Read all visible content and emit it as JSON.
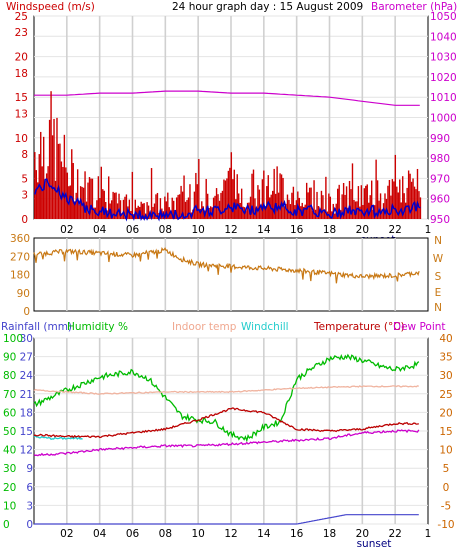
{
  "header": {
    "left": "Windspeed (m/s)",
    "title": "24 hour graph day : 15 August 2009",
    "right": "Barometer (hPa)"
  },
  "panel3_header": {
    "rainfall": "Rainfall (mm)",
    "humidity": "Humidity %",
    "indoor": "Indoor temp",
    "windchill": "Windchill",
    "temperature": "Temperature (°C)",
    "dewpoint": "Dew Point"
  },
  "x_ticks": [
    "02",
    "04",
    "06",
    "08",
    "10",
    "12",
    "14",
    "16",
    "18",
    "20",
    "22"
  ],
  "sunset_label": "sunset",
  "colors": {
    "windspeed": "#cc0000",
    "wind_avg": "#0000cc",
    "barometer": "#cc00cc",
    "wind_dir": "#c87814",
    "humidity": "#00bb00",
    "indoor": "#f0b4a0",
    "windchill": "#22cccc",
    "temperature": "#bb0000",
    "dewpoint": "#cc00cc",
    "rainfall": "#4444cc"
  },
  "chart_data": [
    {
      "type": "line",
      "x_label": "hour",
      "xlim": [
        0,
        24
      ],
      "left_axis": {
        "label": "Windspeed (m/s)",
        "ticks": [
          0,
          3,
          5,
          8,
          10,
          13,
          15,
          18,
          20,
          23,
          25
        ],
        "ylim": [
          0,
          25
        ]
      },
      "right_axis": {
        "label": "Barometer (hPa)",
        "ticks": [
          950,
          960,
          970,
          980,
          990,
          1000,
          1010,
          1020,
          1030,
          1040,
          1050
        ],
        "ylim": [
          950,
          1050
        ]
      },
      "series": [
        {
          "name": "Barometer (hPa)",
          "axis": "right",
          "x": [
            0,
            2,
            4,
            6,
            8,
            10,
            12,
            14,
            16,
            18,
            20,
            22,
            23.5
          ],
          "values": [
            1011,
            1011,
            1012,
            1012,
            1013,
            1013,
            1012,
            1012,
            1011,
            1010,
            1008,
            1006,
            1006
          ]
        },
        {
          "name": "Windspeed (m/s)",
          "axis": "left",
          "x": [
            0,
            1,
            2,
            3,
            4,
            5,
            6,
            7,
            8,
            9,
            10,
            11,
            12,
            13,
            14,
            15,
            16,
            17,
            18,
            19,
            20,
            21,
            22,
            23,
            23.5
          ],
          "values": [
            3.5,
            4.5,
            2.5,
            1.5,
            1,
            0.5,
            0.5,
            0.5,
            0.5,
            0.5,
            1,
            1,
            1.5,
            1,
            1.5,
            1.5,
            1,
            1,
            0.5,
            1,
            1,
            1,
            1,
            1.5,
            1.5
          ]
        }
      ]
    },
    {
      "type": "line",
      "xlim": [
        0,
        24
      ],
      "left_axis": {
        "ticks": [
          0,
          90,
          180,
          270,
          360
        ],
        "ylim": [
          0,
          360
        ]
      },
      "right_axis": {
        "ticks": [
          "N",
          "W",
          "S",
          "E",
          "N"
        ]
      },
      "series": [
        {
          "name": "Wind direction",
          "x": [
            0,
            2,
            4,
            6,
            8,
            9,
            10,
            12,
            14,
            16,
            18,
            20,
            22,
            23.5
          ],
          "values": [
            280,
            295,
            285,
            275,
            300,
            255,
            230,
            220,
            210,
            200,
            185,
            170,
            175,
            190
          ]
        }
      ]
    },
    {
      "type": "line",
      "xlim": [
        0,
        24
      ],
      "axes": {
        "rainfall_mm": {
          "ticks": [
            0,
            3,
            6,
            9,
            12,
            15,
            18,
            21,
            24,
            27,
            30
          ],
          "ylim": [
            0,
            30
          ]
        },
        "humidity_pct": {
          "ticks": [
            0,
            10,
            20,
            30,
            40,
            50,
            60,
            70,
            80,
            90,
            100
          ],
          "ylim": [
            0,
            100
          ]
        },
        "temperature_c": {
          "ticks": [
            -10,
            -5,
            0,
            5,
            10,
            15,
            20,
            25,
            30,
            35,
            40
          ],
          "ylim": [
            -10,
            40
          ]
        }
      },
      "series": [
        {
          "name": "Humidity %",
          "axis": "humidity_pct",
          "x": [
            0,
            2,
            4,
            6,
            7,
            8,
            9,
            10,
            11,
            12,
            13,
            14,
            15,
            16,
            17,
            18,
            19,
            20,
            21,
            22,
            23.5
          ],
          "values": [
            64,
            72,
            79,
            82,
            78,
            68,
            58,
            56,
            55,
            48,
            46,
            52,
            55,
            78,
            84,
            89,
            90,
            88,
            85,
            83,
            86
          ]
        },
        {
          "name": "Indoor temp",
          "axis": "temperature_c",
          "x": [
            0,
            4,
            8,
            12,
            16,
            20,
            23.5
          ],
          "values": [
            26,
            25,
            25.5,
            25.5,
            26.5,
            27,
            27
          ]
        },
        {
          "name": "Windchill",
          "axis": "temperature_c",
          "x": [
            0,
            1,
            2,
            3
          ],
          "values": [
            13.5,
            13,
            13,
            13
          ]
        },
        {
          "name": "Temperature (°C)",
          "axis": "temperature_c",
          "x": [
            0,
            2,
            4,
            6,
            8,
            10,
            12,
            13,
            14,
            16,
            18,
            20,
            22,
            23.5
          ],
          "values": [
            14,
            13.5,
            13.5,
            14.5,
            15.5,
            18,
            21,
            20.5,
            20,
            15.5,
            15,
            15.5,
            17,
            17
          ]
        },
        {
          "name": "Dew Point",
          "axis": "temperature_c",
          "x": [
            0,
            2,
            4,
            6,
            8,
            10,
            12,
            14,
            16,
            18,
            20,
            22,
            23.5
          ],
          "values": [
            8.5,
            9,
            10,
            10.5,
            11,
            11,
            11.5,
            12,
            12.5,
            13,
            14.5,
            15,
            15
          ]
        },
        {
          "name": "Rainfall (mm)",
          "axis": "rainfall_mm",
          "x": [
            0,
            16,
            17,
            18,
            19,
            23.5
          ],
          "values": [
            0,
            0,
            0.5,
            1,
            1.5,
            1.5
          ]
        }
      ]
    }
  ]
}
